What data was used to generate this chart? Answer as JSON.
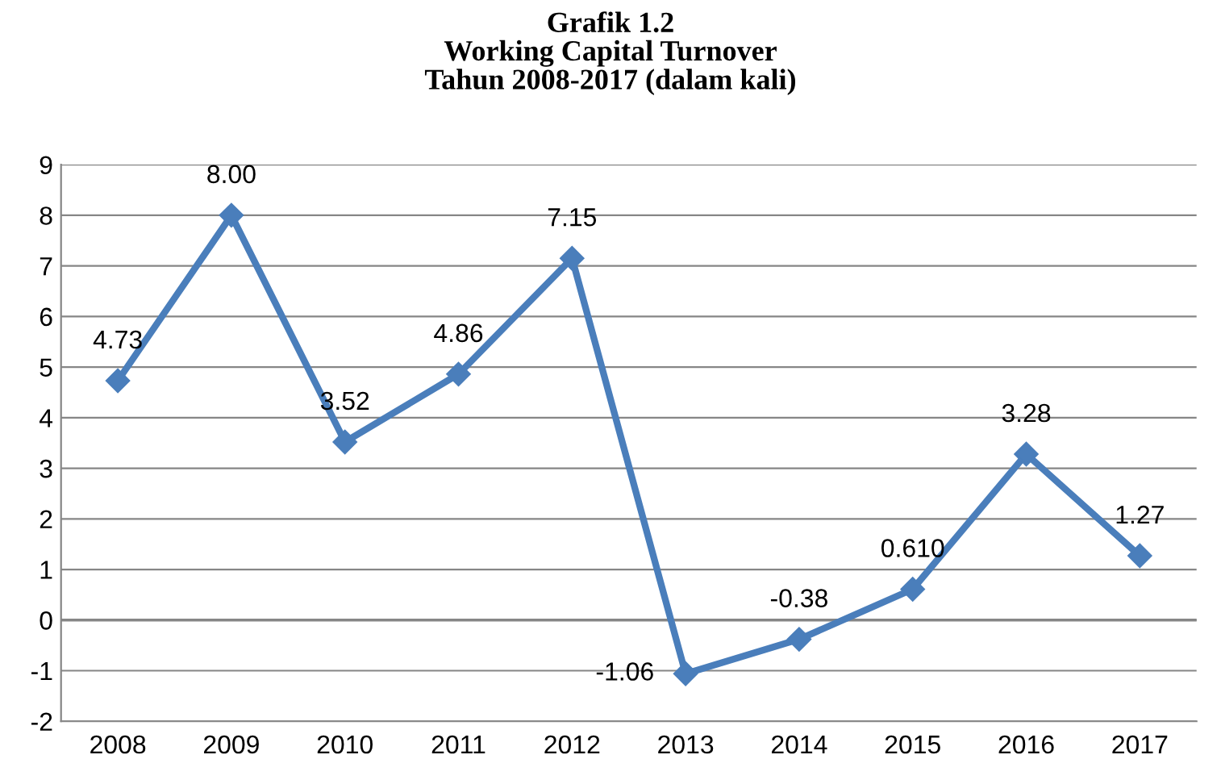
{
  "chart_data": {
    "type": "line",
    "title": "Grafik 1.2\nWorking Capital Turnover\nTahun 2008-2017 (dalam kali)",
    "categories": [
      "2008",
      "2009",
      "2010",
      "2011",
      "2012",
      "2013",
      "2014",
      "2015",
      "2016",
      "2017"
    ],
    "series": [
      {
        "color": "#4a7ebb",
        "values": [
          4.73,
          8.0,
          3.52,
          4.86,
          7.15,
          -1.06,
          -0.38,
          0.61,
          3.28,
          1.27
        ],
        "value_labels": [
          "4.73",
          "8.00",
          "3.52",
          "4.86",
          "7.15",
          "-1.06",
          "-0.38",
          "0.610",
          "3.28",
          "1.27"
        ]
      }
    ],
    "ylim": [
      -2,
      9
    ],
    "yticks": [
      -2,
      -1,
      0,
      1,
      2,
      3,
      4,
      5,
      6,
      7,
      8,
      9
    ],
    "grid": "y",
    "marker": "diamond",
    "line_style": "solid",
    "legend": false
  }
}
